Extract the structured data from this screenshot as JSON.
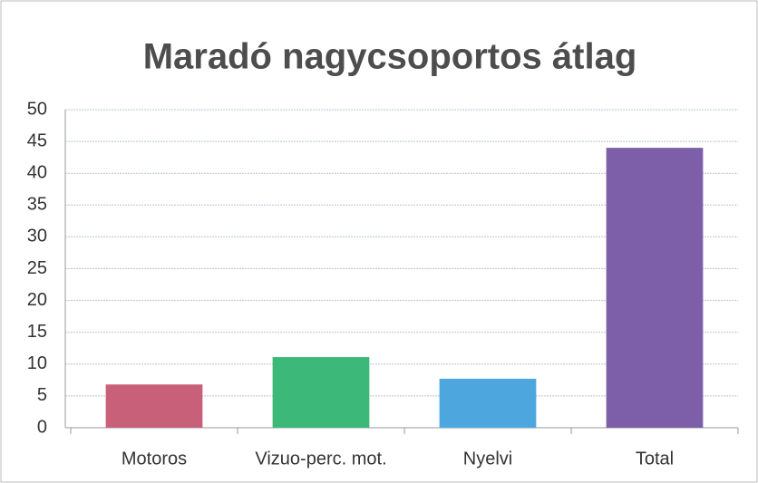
{
  "chart_data": {
    "type": "bar",
    "title": "Maradó nagycsoportos átlag",
    "categories": [
      "Motoros",
      "Vizuo-perc. mot.",
      "Nyelvi",
      "Total"
    ],
    "values": [
      6.8,
      11.1,
      7.7,
      44
    ],
    "colors": [
      "#c9607a",
      "#3cb878",
      "#4ea6df",
      "#7d5ea8"
    ],
    "ylim": [
      0,
      50
    ],
    "yticks": [
      0,
      5,
      10,
      15,
      20,
      25,
      30,
      35,
      40,
      45,
      50
    ],
    "grid": true
  }
}
